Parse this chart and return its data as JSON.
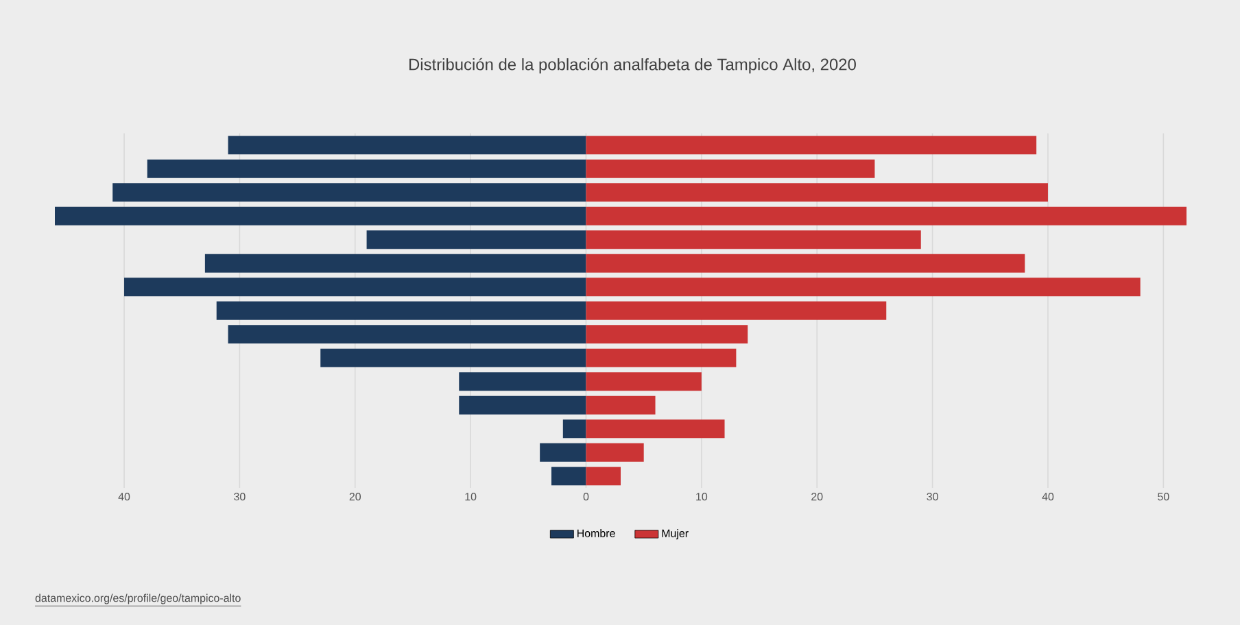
{
  "chart_data": {
    "type": "bar",
    "orientation": "horizontal",
    "title": "Distribución de la población analfabeta de Tampico Alto, 2020",
    "categories": [
      null,
      null,
      null,
      null,
      null,
      null,
      null,
      null,
      null,
      null,
      null,
      null,
      null,
      null,
      null
    ],
    "series": [
      {
        "name": "Hombre",
        "color": "#1d3a5c",
        "values": [
          -31,
          -38,
          -41,
          -46,
          -19,
          -33,
          -40,
          -32,
          -31,
          -23,
          -11,
          -11,
          -2,
          -4,
          -3
        ]
      },
      {
        "name": "Mujer",
        "color": "#cb3435",
        "values": [
          39,
          25,
          40,
          52,
          29,
          38,
          48,
          26,
          14,
          13,
          10,
          6,
          12,
          5,
          3
        ]
      }
    ],
    "xlim": [
      -46,
      52
    ],
    "stacked": true,
    "xticks": [
      {
        "value": -40,
        "label": "40"
      },
      {
        "value": -30,
        "label": "30"
      },
      {
        "value": -20,
        "label": "20"
      },
      {
        "value": -10,
        "label": "10"
      },
      0,
      10,
      20,
      30,
      40,
      50
    ],
    "grid": "x",
    "legend": "bottom",
    "annotations": [
      "datamexico.org/es/profile/geo/tampico-alto"
    ]
  }
}
